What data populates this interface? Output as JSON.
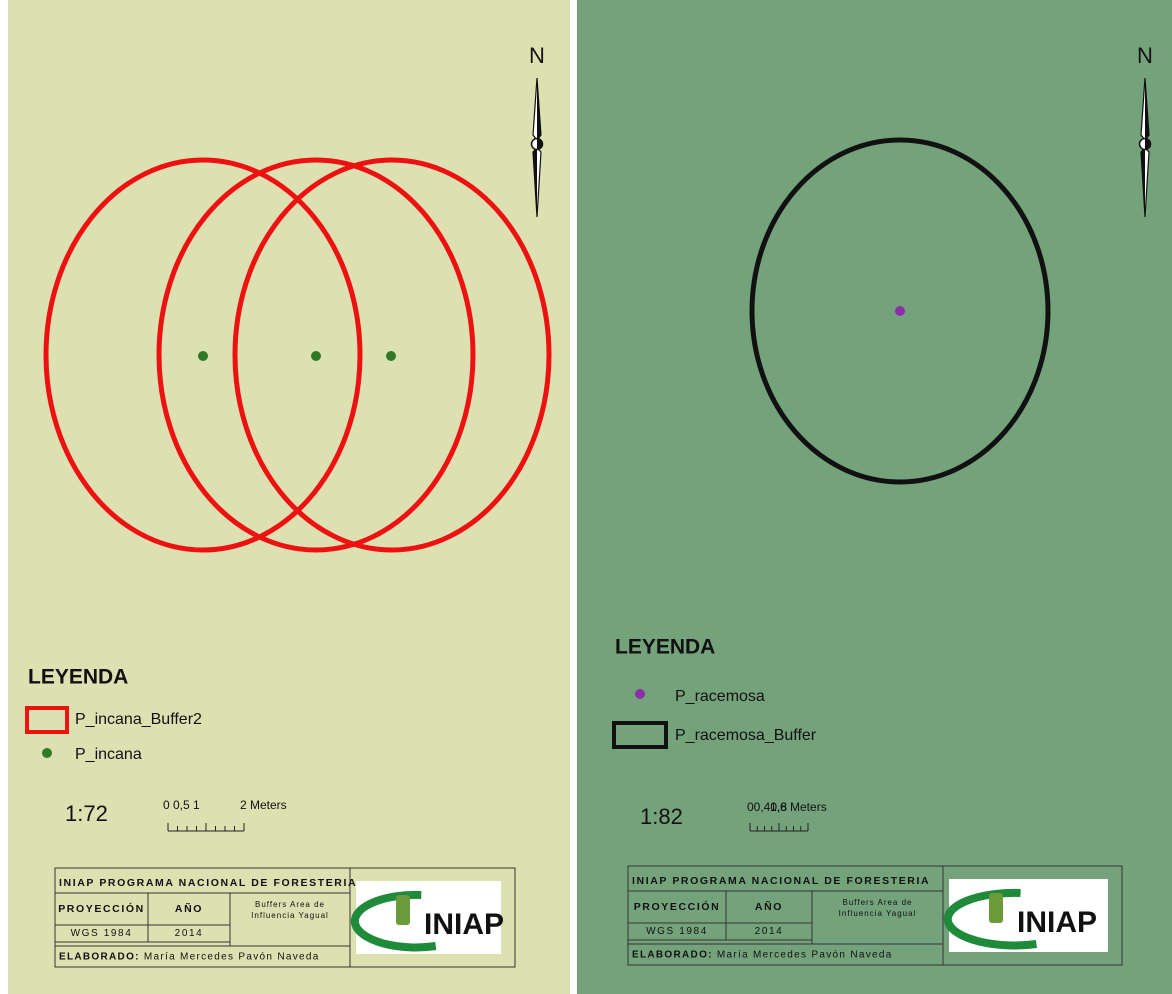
{
  "panels": [
    {
      "north": "N",
      "legend": {
        "title": "LEYENDA",
        "items": [
          {
            "label": "P_incana_Buffer2"
          },
          {
            "label": "P_incana"
          }
        ]
      },
      "scale": "1:72",
      "scale_bar": {
        "labels": [
          "0 0,5 1",
          "2 Meters"
        ]
      },
      "title_block": {
        "header": "INIAP PROGRAMA NACIONAL DE FORESTERIA",
        "projection_label": "PROYECCIÓN",
        "year_label": "AÑO",
        "description": [
          "Buffers Area de",
          "Influencia Yagual"
        ],
        "projection": "WGS 1984",
        "year": "2014",
        "author_label": "ELABORADO:",
        "author": "María Mercedes Pavón Naveda"
      },
      "logo": "INIAP"
    },
    {
      "north": "N",
      "legend": {
        "title": "LEYENDA",
        "items": [
          {
            "label": "P_racemosa"
          },
          {
            "label": "P_racemosa_Buffer"
          }
        ]
      },
      "scale": "1:82",
      "scale_bar": {
        "labels": [
          "00,40,8",
          "1,6 Meters"
        ]
      },
      "title_block": {
        "header": "INIAP PROGRAMA NACIONAL DE FORESTERIA",
        "projection_label": "PROYECCIÓN",
        "year_label": "AÑO",
        "description": [
          "Buffers Area de",
          "Influencia Yagual"
        ],
        "projection": "WGS 1984",
        "year": "2014",
        "author_label": "ELABORADO:",
        "author": "María Mercedes Pavón Naveda"
      },
      "logo": "INIAP"
    }
  ]
}
